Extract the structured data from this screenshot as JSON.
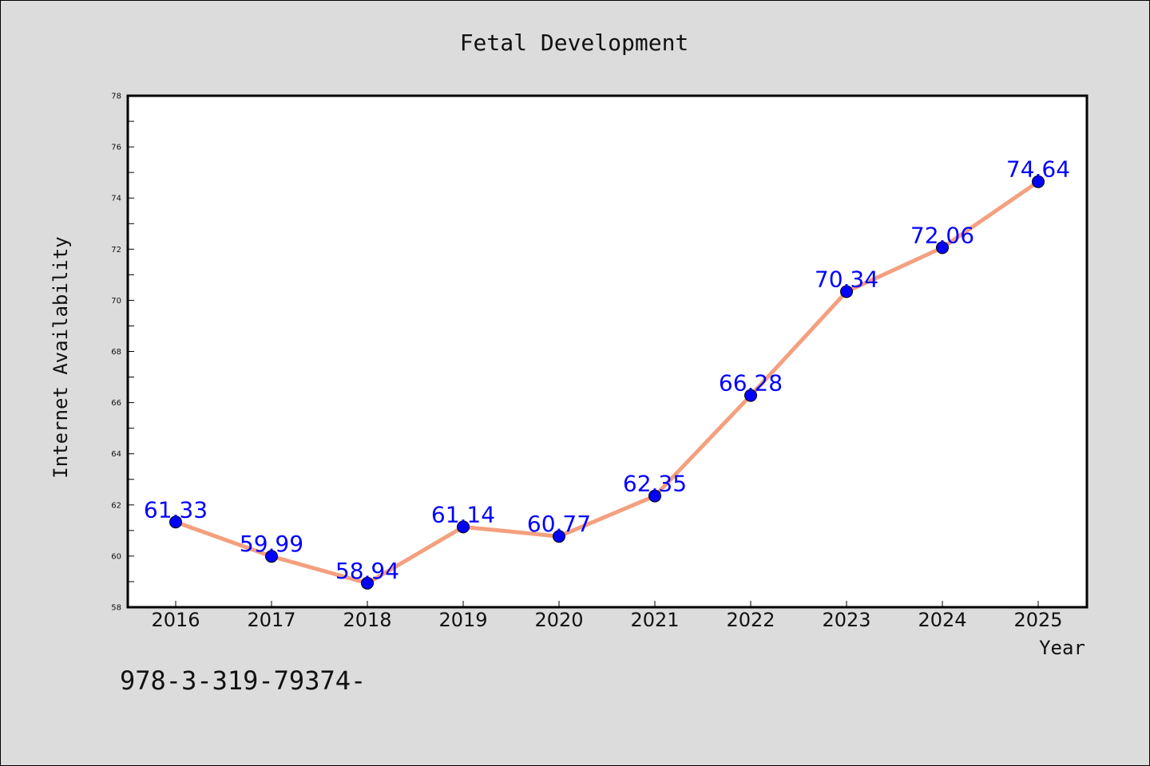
{
  "chart_data": {
    "type": "line",
    "title": "Fetal Development",
    "xlabel": "Year",
    "ylabel": "Internet Availability",
    "x": [
      "2016",
      "2017",
      "2018",
      "2019",
      "2020",
      "2021",
      "2022",
      "2023",
      "2024",
      "2025"
    ],
    "series": [
      {
        "values": [
          61.33,
          59.99,
          58.94,
          61.14,
          60.77,
          62.35,
          66.28,
          70.34,
          72.06,
          74.64
        ]
      }
    ],
    "data_labels": [
      "61.33",
      "59.99",
      "58.94",
      "61.14",
      "60.77",
      "62.35",
      "66.28",
      "70.34",
      "72.06",
      "74.64"
    ],
    "ylim": [
      58,
      78
    ],
    "yticks": [
      "58",
      "60",
      "62",
      "64",
      "66",
      "68",
      "70",
      "72",
      "74",
      "76",
      "78"
    ],
    "grid": false,
    "legend": "none",
    "colors": {
      "line": "#f4a07f",
      "marker": "#0000ff",
      "data_label": "#0000ff",
      "background": "#dcdcdc",
      "plot_background": "#ffffff"
    }
  },
  "footer_text": "978-3-319-79374-"
}
